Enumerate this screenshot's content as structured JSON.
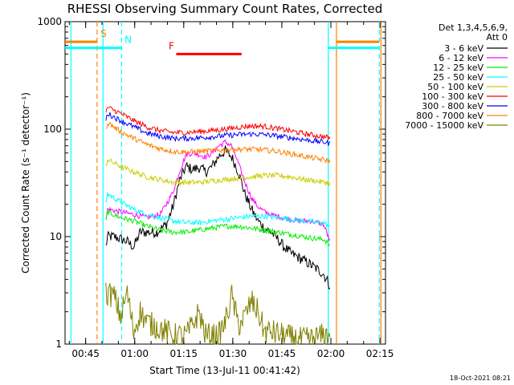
{
  "chart_data": {
    "type": "line",
    "title": "RHESSI Observing Summary Count Rates, Corrected",
    "xlabel": "Start Time (13-Jul-11 00:41:42)",
    "ylabel": "Corrected Count Rate (s⁻¹ detector⁻¹)",
    "y_scale": "log",
    "ylim": [
      1,
      1000
    ],
    "xlim_minutes_from_start": [
      -3,
      95
    ],
    "x_ticks": [
      {
        "label": "00:45",
        "t": 3.3
      },
      {
        "label": "01:00",
        "t": 18.3
      },
      {
        "label": "01:15",
        "t": 33.3
      },
      {
        "label": "01:30",
        "t": 48.3
      },
      {
        "label": "01:45",
        "t": 63.3
      },
      {
        "label": "02:00",
        "t": 78.3
      },
      {
        "label": "02:15",
        "t": 93.3
      }
    ],
    "y_ticks": [
      {
        "label": "1",
        "v": 1
      },
      {
        "label": "10",
        "v": 10
      },
      {
        "label": "100",
        "v": 100
      },
      {
        "label": "1000",
        "v": 1000
      }
    ],
    "legend": {
      "header": [
        "Det 1,3,4,5,6,9,",
        "Att 0"
      ],
      "placement": "right"
    },
    "series": [
      {
        "name": "3 - 6 keV",
        "color": "#000000",
        "t": [
          9.5,
          10,
          12,
          14,
          16,
          18,
          20,
          22,
          25,
          28,
          30,
          32,
          34,
          36,
          38,
          40,
          42,
          44,
          46,
          48,
          50,
          52,
          54,
          56,
          58,
          60,
          62,
          64,
          66,
          68,
          70,
          72,
          74,
          76,
          77,
          78
        ],
        "v": [
          8,
          10,
          10,
          9.5,
          9,
          8,
          11,
          11,
          11,
          13,
          19,
          33,
          45,
          42,
          44,
          40,
          45,
          56,
          63,
          55,
          40,
          25,
          18,
          14,
          12,
          11,
          9.5,
          8,
          7,
          6.5,
          6,
          5.5,
          5,
          4.5,
          4,
          3.5
        ]
      },
      {
        "name": "6 - 12 keV",
        "color": "#ff00ff",
        "t": [
          9.5,
          10,
          14,
          18,
          22,
          26,
          28,
          30,
          32,
          34,
          36,
          38,
          40,
          42,
          44,
          46,
          48,
          50,
          52,
          54,
          56,
          58,
          60,
          64,
          68,
          72,
          76,
          77,
          78
        ],
        "v": [
          14,
          18,
          17,
          16,
          15,
          16,
          20,
          26,
          40,
          58,
          60,
          58,
          55,
          60,
          70,
          76,
          70,
          48,
          32,
          23,
          19,
          17,
          16,
          15,
          14,
          14,
          13,
          11,
          9
        ]
      },
      {
        "name": "12 - 25 keV",
        "color": "#00ee00",
        "t": [
          9.5,
          10,
          14,
          18,
          22,
          26,
          30,
          34,
          38,
          42,
          46,
          50,
          54,
          58,
          62,
          66,
          70,
          74,
          76,
          77,
          78
        ],
        "v": [
          14,
          17,
          15,
          14,
          12.5,
          11.5,
          11,
          11,
          11.5,
          12,
          12.5,
          12.5,
          12,
          11.5,
          11,
          10.5,
          10,
          9.5,
          9.5,
          9,
          8
        ]
      },
      {
        "name": "25 - 50 keV",
        "color": "#00ffff",
        "t": [
          9.5,
          10,
          14,
          18,
          22,
          26,
          30,
          34,
          38,
          42,
          46,
          50,
          54,
          58,
          62,
          66,
          70,
          74,
          76,
          77,
          78
        ],
        "v": [
          21,
          25,
          21,
          18,
          16,
          15,
          14,
          13.5,
          13.5,
          14,
          14.5,
          15,
          15.5,
          15.5,
          15,
          14.5,
          14,
          13.5,
          13.5,
          13,
          12
        ]
      },
      {
        "name": "50 - 100 keV",
        "color": "#cccc00",
        "t": [
          9.5,
          10,
          14,
          18,
          22,
          26,
          30,
          34,
          38,
          42,
          46,
          50,
          54,
          58,
          62,
          66,
          70,
          74,
          76,
          77,
          78
        ],
        "v": [
          45,
          52,
          45,
          40,
          36,
          34,
          32,
          32,
          32,
          33,
          34,
          35,
          36,
          37,
          37,
          36,
          34,
          33,
          32,
          32,
          31
        ]
      },
      {
        "name": "100 - 300 keV",
        "color": "#ff0000",
        "t": [
          9.5,
          10,
          14,
          18,
          22,
          26,
          30,
          34,
          38,
          42,
          46,
          50,
          54,
          58,
          62,
          66,
          70,
          74,
          76,
          77,
          78
        ],
        "v": [
          140,
          160,
          140,
          120,
          105,
          97,
          93,
          93,
          95,
          97,
          100,
          104,
          107,
          106,
          101,
          96,
          91,
          87,
          85,
          84,
          82
        ]
      },
      {
        "name": "300 - 800 keV",
        "color": "#0000ff",
        "t": [
          9.5,
          10,
          14,
          18,
          22,
          26,
          30,
          34,
          38,
          42,
          46,
          50,
          54,
          58,
          62,
          66,
          70,
          74,
          76,
          77,
          78
        ],
        "v": [
          120,
          140,
          120,
          105,
          92,
          86,
          82,
          82,
          83,
          85,
          87,
          89,
          90,
          89,
          86,
          83,
          80,
          77,
          76,
          75,
          73
        ]
      },
      {
        "name": "800 - 7000 keV",
        "color": "#ff8000",
        "t": [
          9.5,
          10,
          14,
          18,
          22,
          26,
          30,
          34,
          38,
          42,
          46,
          50,
          54,
          58,
          62,
          66,
          70,
          74,
          76,
          77,
          78
        ],
        "v": [
          100,
          115,
          95,
          82,
          72,
          66,
          62,
          61,
          62,
          63,
          64,
          65,
          65,
          64,
          62,
          59,
          56,
          53,
          52,
          51,
          50
        ]
      },
      {
        "name": "7000 - 15000 keV",
        "color": "#808000",
        "t": [
          9.5,
          12,
          14,
          16,
          18,
          20,
          22,
          24,
          26,
          28,
          30,
          34,
          36,
          38,
          40,
          44,
          46,
          48,
          50,
          52,
          54,
          56,
          58,
          60,
          64,
          68,
          72,
          76,
          78
        ],
        "v": [
          3,
          2.8,
          1.8,
          3,
          1.3,
          2,
          1.6,
          1.5,
          1.4,
          1.3,
          1.2,
          1.2,
          1.5,
          2,
          1.2,
          1.2,
          1.6,
          2.8,
          1.5,
          1.8,
          2.5,
          2,
          1.3,
          1.3,
          1.2,
          1.1,
          1.1,
          1.2,
          1.2
        ]
      }
    ],
    "segments": [
      {
        "label": "S",
        "color": "#ff8000",
        "level": 650,
        "t0": -3,
        "t1": 6.8,
        "t1b": 80,
        "t2b": 93
      },
      {
        "label": "N",
        "color": "#00ffff",
        "level": 570,
        "t0": -3,
        "t1": 14.3,
        "t1b": 77.5,
        "t2b": 93
      },
      {
        "label": "F",
        "color": "#ff0000",
        "level": 500,
        "t0": 31,
        "t1": 51
      }
    ],
    "vertical_lines": [
      {
        "color": "#00ffff",
        "style": "solid",
        "t": -1.2
      },
      {
        "color": "#ff8000",
        "style": "dashed",
        "t": 6.8
      },
      {
        "color": "#00ffff",
        "style": "solid",
        "t": 8.6
      },
      {
        "color": "#00ffff",
        "style": "dashed",
        "t": 14.3
      },
      {
        "color": "#00ffff",
        "style": "solid",
        "t": 77.5
      },
      {
        "color": "#ff8000",
        "style": "solid",
        "t": 80.0
      },
      {
        "color": "#00ffff",
        "style": "dashed",
        "t": 93.1
      },
      {
        "color": "#ff8000",
        "style": "solid",
        "t": 93.6
      }
    ],
    "grid": false
  },
  "timestamp": "18-Oct-2021 08:21"
}
